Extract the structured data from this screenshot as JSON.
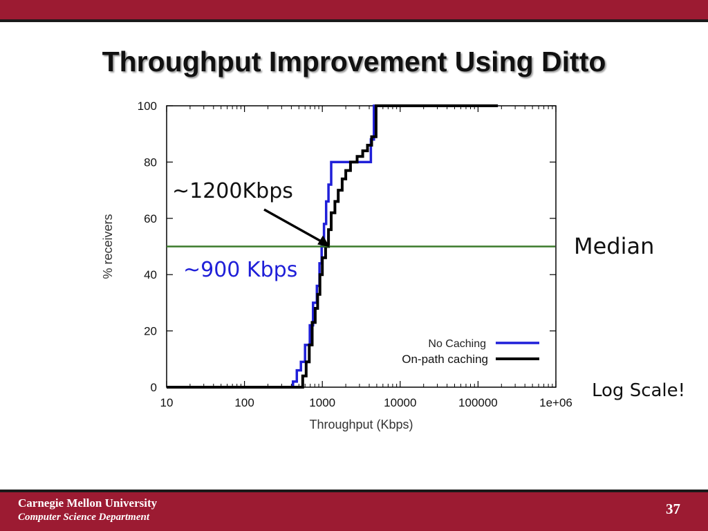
{
  "slide": {
    "title": "Throughput Improvement Using Ditto",
    "page_number": "37"
  },
  "footer": {
    "university": "Carnegie Mellon University",
    "department": "Computer Science Department"
  },
  "annotations": {
    "on_path_median": "~1200Kbps",
    "no_cache_median": "~900 Kbps",
    "median": "Median",
    "log_scale": "Log Scale!"
  },
  "colors": {
    "brand": "#9c1b32",
    "no_caching": "#1f1fd8",
    "on_path_caching": "#000000",
    "median_line": "#3a7a2a",
    "no_cache_label": "#1f1fd8"
  },
  "chart_data": {
    "type": "line",
    "xlabel": "Throughput (Kbps)",
    "ylabel": "% receivers",
    "xscale": "log",
    "xlim": [
      10,
      1000000
    ],
    "ylim": [
      0,
      100
    ],
    "x_ticks": [
      10,
      100,
      1000,
      10000,
      100000,
      1000000
    ],
    "x_tick_labels": [
      "10",
      "100",
      "1000",
      "10000",
      "100000",
      "1e+06"
    ],
    "y_ticks": [
      0,
      20,
      40,
      60,
      80,
      100
    ],
    "y_tick_labels": [
      "0",
      "20",
      "40",
      "60",
      "80",
      "100"
    ],
    "grid": false,
    "legend": "bottom-right",
    "median_line": 50,
    "series": [
      {
        "name": "No Caching",
        "color": "#1f1fd8",
        "step": true,
        "points": [
          [
            10,
            0
          ],
          [
            420,
            0
          ],
          [
            420,
            2
          ],
          [
            470,
            2
          ],
          [
            470,
            6
          ],
          [
            530,
            6
          ],
          [
            530,
            9
          ],
          [
            600,
            9
          ],
          [
            600,
            15
          ],
          [
            690,
            15
          ],
          [
            690,
            22
          ],
          [
            760,
            22
          ],
          [
            760,
            30
          ],
          [
            850,
            30
          ],
          [
            850,
            36
          ],
          [
            920,
            36
          ],
          [
            920,
            44
          ],
          [
            980,
            44
          ],
          [
            980,
            50
          ],
          [
            1050,
            50
          ],
          [
            1050,
            58
          ],
          [
            1120,
            58
          ],
          [
            1120,
            66
          ],
          [
            1200,
            66
          ],
          [
            1200,
            72
          ],
          [
            1300,
            72
          ],
          [
            1300,
            80
          ],
          [
            4200,
            80
          ],
          [
            4200,
            88
          ],
          [
            4600,
            88
          ],
          [
            4600,
            100
          ],
          [
            180000,
            100
          ]
        ]
      },
      {
        "name": "On-path caching",
        "color": "#000000",
        "step": true,
        "points": [
          [
            10,
            0
          ],
          [
            560,
            0
          ],
          [
            560,
            4
          ],
          [
            620,
            4
          ],
          [
            620,
            9
          ],
          [
            680,
            9
          ],
          [
            680,
            15
          ],
          [
            740,
            15
          ],
          [
            740,
            23
          ],
          [
            810,
            23
          ],
          [
            810,
            28
          ],
          [
            870,
            28
          ],
          [
            870,
            33
          ],
          [
            930,
            33
          ],
          [
            930,
            40
          ],
          [
            1000,
            40
          ],
          [
            1000,
            46
          ],
          [
            1100,
            46
          ],
          [
            1100,
            50
          ],
          [
            1200,
            50
          ],
          [
            1200,
            56
          ],
          [
            1300,
            56
          ],
          [
            1300,
            62
          ],
          [
            1450,
            62
          ],
          [
            1450,
            66
          ],
          [
            1600,
            66
          ],
          [
            1600,
            70
          ],
          [
            1800,
            70
          ],
          [
            1800,
            74
          ],
          [
            2000,
            74
          ],
          [
            2000,
            77
          ],
          [
            2300,
            77
          ],
          [
            2300,
            80
          ],
          [
            2800,
            80
          ],
          [
            2800,
            82
          ],
          [
            3300,
            82
          ],
          [
            3300,
            84
          ],
          [
            3800,
            84
          ],
          [
            3800,
            86
          ],
          [
            4300,
            86
          ],
          [
            4300,
            89
          ],
          [
            4900,
            89
          ],
          [
            4900,
            100
          ],
          [
            180000,
            100
          ]
        ]
      }
    ]
  }
}
